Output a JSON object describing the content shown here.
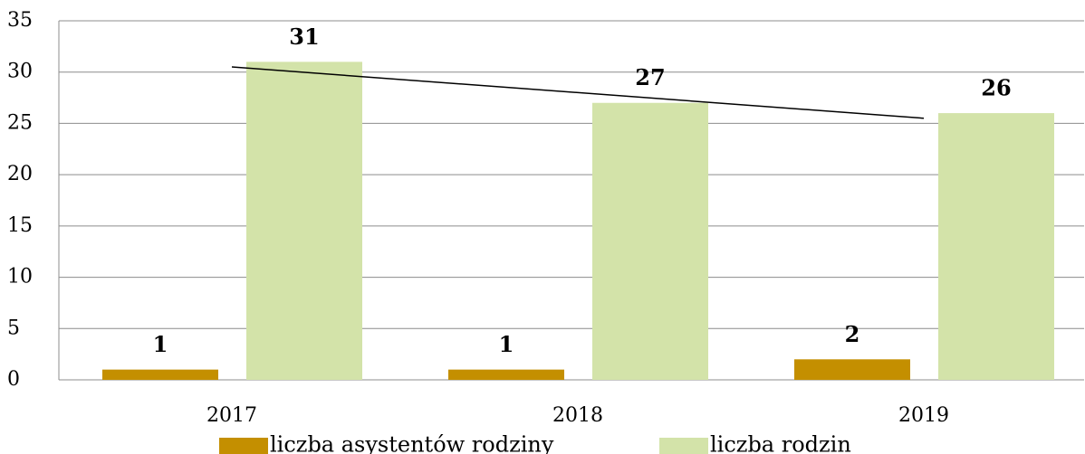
{
  "chart_data": {
    "type": "bar",
    "categories": [
      "2017",
      "2018",
      "2019"
    ],
    "series": [
      {
        "name": "liczba asystentów rodziny",
        "color": "#c48f00",
        "values": [
          1,
          1,
          2
        ]
      },
      {
        "name": "liczba rodzin",
        "color": "#d3e3a9",
        "values": [
          31,
          27,
          26
        ],
        "trendline": "linear"
      }
    ],
    "ylim": [
      0,
      35
    ],
    "yticks": [
      0,
      5,
      10,
      15,
      20,
      25,
      30,
      35
    ],
    "grid": true,
    "legend": "bottom"
  }
}
